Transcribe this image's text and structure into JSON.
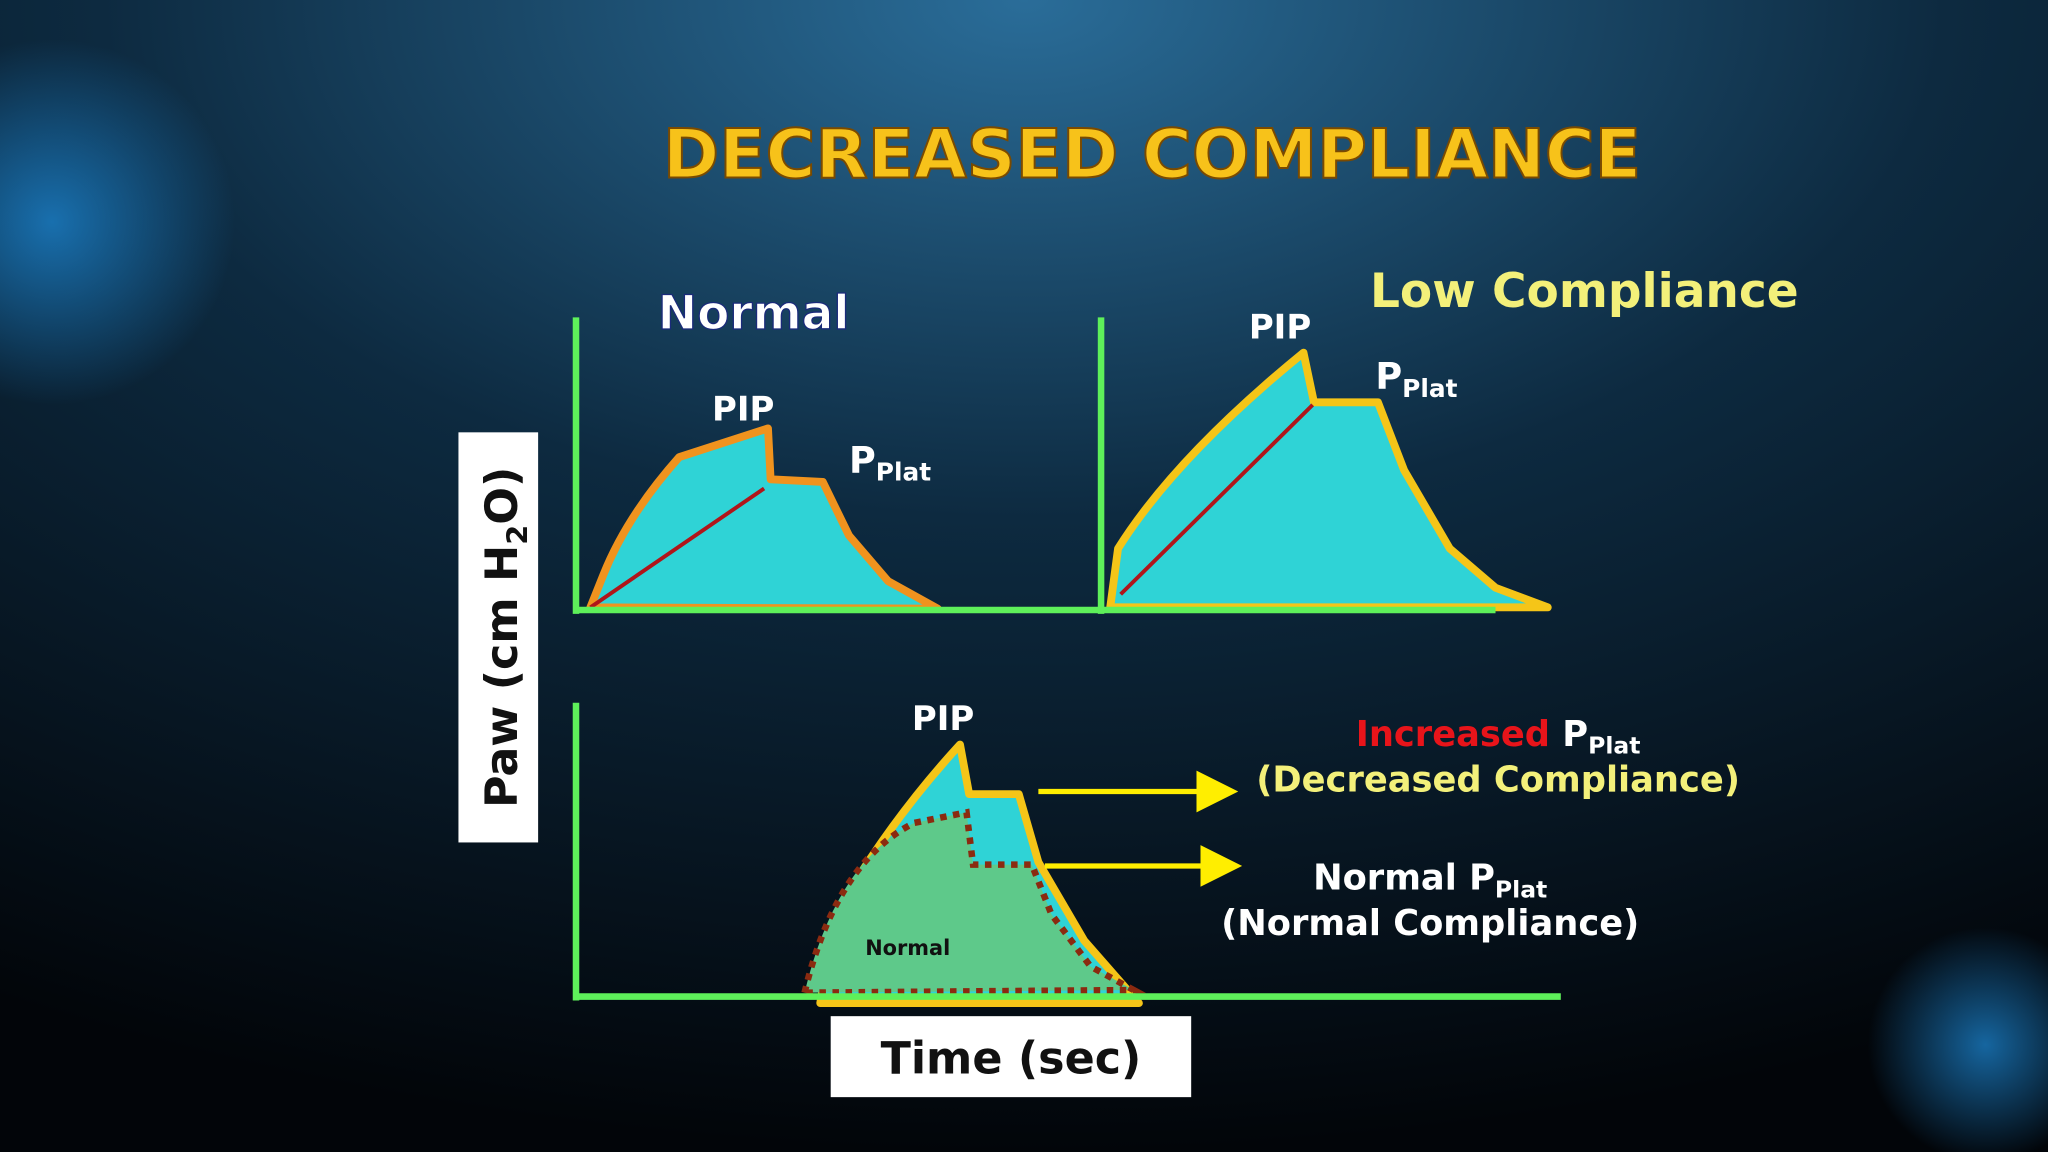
{
  "title": "DECREASED COMPLIANCE",
  "y_axis_label": {
    "main": "Paw  (cm H",
    "sub": "2",
    "end": "O)"
  },
  "x_axis_label": "Time (sec)",
  "panels": [
    {
      "label": "Normal",
      "pip": "PIP",
      "plat": {
        "p": "P",
        "sub": "Plat"
      }
    },
    {
      "label": "Low Compliance",
      "pip": "PIP",
      "plat": {
        "p": "P",
        "sub": "Plat"
      }
    }
  ],
  "bottom": {
    "pip": "PIP",
    "area_label": "Normal",
    "annotations": [
      {
        "prefix": "Increased",
        "p": "P",
        "sub": "Plat",
        "line2": "(Decreased Compliance)"
      },
      {
        "prefix": "Normal",
        "p": "P",
        "sub": "Plat",
        "line2": "(Normal Compliance)"
      }
    ]
  }
}
